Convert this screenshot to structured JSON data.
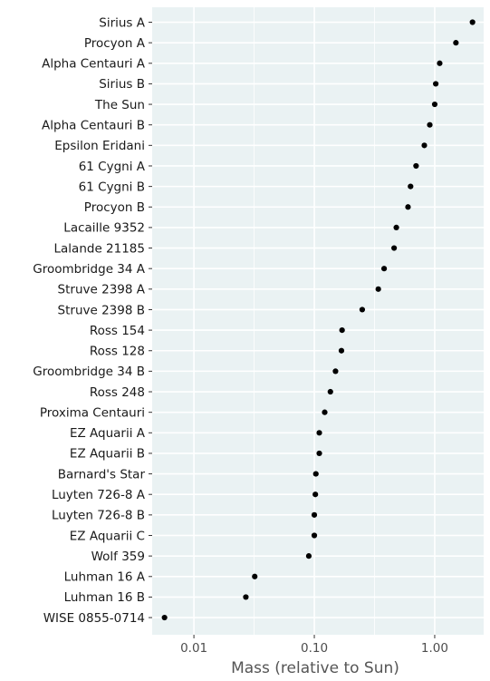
{
  "chart_data": {
    "type": "scatter",
    "xlabel": "Mass (relative to Sun)",
    "ylabel": "",
    "x_scale": "log",
    "xlim": [
      0.0045,
      2.55
    ],
    "x_ticks": [
      {
        "value": 0.01,
        "label": "0.01"
      },
      {
        "value": 0.1,
        "label": "0.10"
      },
      {
        "value": 1.0,
        "label": "1.00"
      }
    ],
    "grid": true,
    "legend": "none",
    "colors": {
      "panel": "#eaf2f3",
      "grid": "#ffffff",
      "point": "#000000"
    },
    "categories": [
      "Sirius A",
      "Procyon A",
      "Alpha Centauri A",
      "Sirius B",
      "The Sun",
      "Alpha Centauri B",
      "Epsilon Eridani",
      "61 Cygni A",
      "61 Cygni B",
      "Procyon B",
      "Lacaille 9352",
      "Lalande 21185",
      "Groombridge 34 A",
      "Struve 2398 A",
      "Struve 2398 B",
      "Ross 154",
      "Ross 128",
      "Groombridge 34 B",
      "Ross 248",
      "Proxima Centauri",
      "EZ Aquarii A",
      "EZ Aquarii B",
      "Barnard's Star",
      "Luyten 726-8 A",
      "Luyten 726-8 B",
      "EZ Aquarii C",
      "Wolf 359",
      "Luhman 16 A",
      "Luhman 16 B",
      "WISE 0855-0714"
    ],
    "values": [
      2.06,
      1.5,
      1.1,
      1.02,
      1.0,
      0.91,
      0.82,
      0.7,
      0.63,
      0.6,
      0.48,
      0.46,
      0.38,
      0.34,
      0.25,
      0.17,
      0.168,
      0.15,
      0.136,
      0.122,
      0.11,
      0.11,
      0.103,
      0.102,
      0.1,
      0.1,
      0.09,
      0.032,
      0.027,
      0.0057
    ]
  }
}
